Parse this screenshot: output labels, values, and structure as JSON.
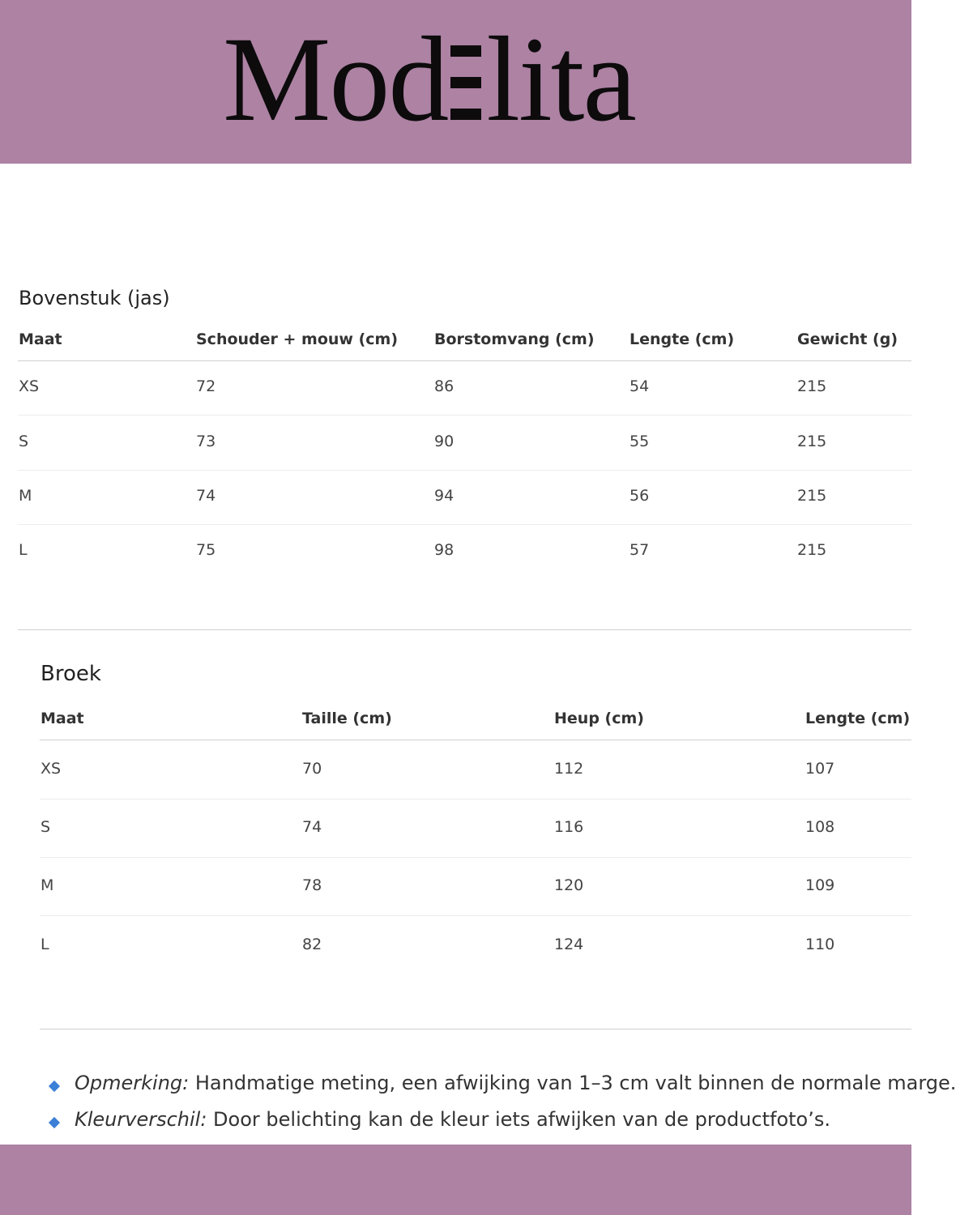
{
  "brand": {
    "logo_text": "Modelita",
    "band_color": "#ad82a3"
  },
  "top_table": {
    "title": "Bovenstuk (jas)",
    "headers": [
      "Maat",
      "Schouder + mouw (cm)",
      "Borstomvang (cm)",
      "Lengte (cm)",
      "Gewicht (g)"
    ],
    "rows": [
      [
        "XS",
        "72",
        "86",
        "54",
        "215"
      ],
      [
        "S",
        "73",
        "90",
        "55",
        "215"
      ],
      [
        "M",
        "74",
        "94",
        "56",
        "215"
      ],
      [
        "L",
        "75",
        "98",
        "57",
        "215"
      ]
    ]
  },
  "bottom_table": {
    "title": "Broek",
    "headers": [
      "Maat",
      "Taille (cm)",
      "Heup (cm)",
      "Lengte (cm)"
    ],
    "rows": [
      [
        "XS",
        "70",
        "112",
        "107"
      ],
      [
        "S",
        "74",
        "116",
        "108"
      ],
      [
        "M",
        "78",
        "120",
        "109"
      ],
      [
        "L",
        "82",
        "124",
        "110"
      ]
    ]
  },
  "notes": [
    {
      "label": "Opmerking:",
      "text": " Handmatige meting, een afwijking van 1–3 cm valt binnen de normale marge."
    },
    {
      "label": "Kleurverschil:",
      "text": " Door belichting kan de kleur iets afwijken van de productfoto’s."
    }
  ],
  "bullet_color": "#3b7fd6"
}
